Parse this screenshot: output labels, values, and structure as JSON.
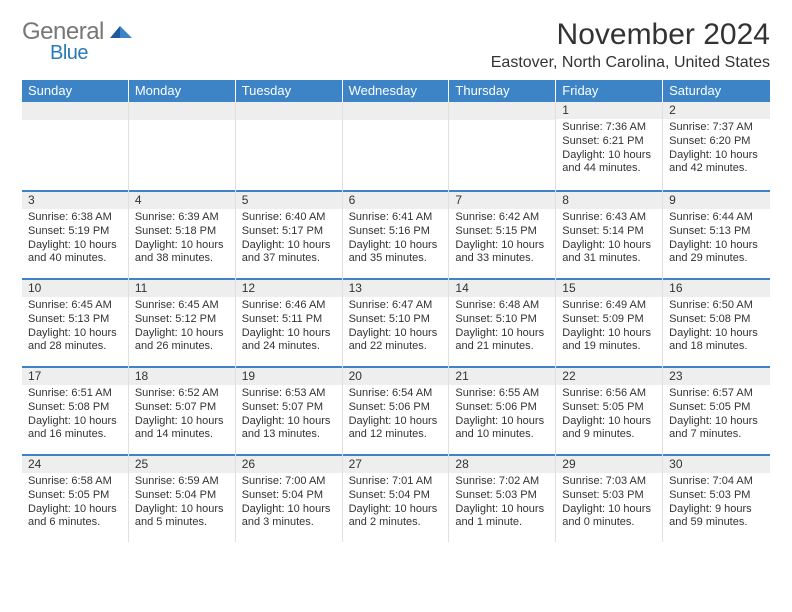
{
  "logo": {
    "word1": "General",
    "word2": "Blue"
  },
  "title": "November 2024",
  "location": "Eastover, North Carolina, United States",
  "colors": {
    "header_bg": "#3c84c6",
    "header_text": "#ffffff",
    "daynum_bg": "#eeeeee",
    "border": "#e0e0e0",
    "text": "#333333",
    "logo_general": "#777777",
    "logo_blue": "#2a7ab9"
  },
  "day_names": [
    "Sunday",
    "Monday",
    "Tuesday",
    "Wednesday",
    "Thursday",
    "Friday",
    "Saturday"
  ],
  "weeks": [
    [
      null,
      null,
      null,
      null,
      null,
      {
        "num": "1",
        "sunrise": "Sunrise: 7:36 AM",
        "sunset": "Sunset: 6:21 PM",
        "day1": "Daylight: 10 hours",
        "day2": "and 44 minutes."
      },
      {
        "num": "2",
        "sunrise": "Sunrise: 7:37 AM",
        "sunset": "Sunset: 6:20 PM",
        "day1": "Daylight: 10 hours",
        "day2": "and 42 minutes."
      }
    ],
    [
      {
        "num": "3",
        "sunrise": "Sunrise: 6:38 AM",
        "sunset": "Sunset: 5:19 PM",
        "day1": "Daylight: 10 hours",
        "day2": "and 40 minutes."
      },
      {
        "num": "4",
        "sunrise": "Sunrise: 6:39 AM",
        "sunset": "Sunset: 5:18 PM",
        "day1": "Daylight: 10 hours",
        "day2": "and 38 minutes."
      },
      {
        "num": "5",
        "sunrise": "Sunrise: 6:40 AM",
        "sunset": "Sunset: 5:17 PM",
        "day1": "Daylight: 10 hours",
        "day2": "and 37 minutes."
      },
      {
        "num": "6",
        "sunrise": "Sunrise: 6:41 AM",
        "sunset": "Sunset: 5:16 PM",
        "day1": "Daylight: 10 hours",
        "day2": "and 35 minutes."
      },
      {
        "num": "7",
        "sunrise": "Sunrise: 6:42 AM",
        "sunset": "Sunset: 5:15 PM",
        "day1": "Daylight: 10 hours",
        "day2": "and 33 minutes."
      },
      {
        "num": "8",
        "sunrise": "Sunrise: 6:43 AM",
        "sunset": "Sunset: 5:14 PM",
        "day1": "Daylight: 10 hours",
        "day2": "and 31 minutes."
      },
      {
        "num": "9",
        "sunrise": "Sunrise: 6:44 AM",
        "sunset": "Sunset: 5:13 PM",
        "day1": "Daylight: 10 hours",
        "day2": "and 29 minutes."
      }
    ],
    [
      {
        "num": "10",
        "sunrise": "Sunrise: 6:45 AM",
        "sunset": "Sunset: 5:13 PM",
        "day1": "Daylight: 10 hours",
        "day2": "and 28 minutes."
      },
      {
        "num": "11",
        "sunrise": "Sunrise: 6:45 AM",
        "sunset": "Sunset: 5:12 PM",
        "day1": "Daylight: 10 hours",
        "day2": "and 26 minutes."
      },
      {
        "num": "12",
        "sunrise": "Sunrise: 6:46 AM",
        "sunset": "Sunset: 5:11 PM",
        "day1": "Daylight: 10 hours",
        "day2": "and 24 minutes."
      },
      {
        "num": "13",
        "sunrise": "Sunrise: 6:47 AM",
        "sunset": "Sunset: 5:10 PM",
        "day1": "Daylight: 10 hours",
        "day2": "and 22 minutes."
      },
      {
        "num": "14",
        "sunrise": "Sunrise: 6:48 AM",
        "sunset": "Sunset: 5:10 PM",
        "day1": "Daylight: 10 hours",
        "day2": "and 21 minutes."
      },
      {
        "num": "15",
        "sunrise": "Sunrise: 6:49 AM",
        "sunset": "Sunset: 5:09 PM",
        "day1": "Daylight: 10 hours",
        "day2": "and 19 minutes."
      },
      {
        "num": "16",
        "sunrise": "Sunrise: 6:50 AM",
        "sunset": "Sunset: 5:08 PM",
        "day1": "Daylight: 10 hours",
        "day2": "and 18 minutes."
      }
    ],
    [
      {
        "num": "17",
        "sunrise": "Sunrise: 6:51 AM",
        "sunset": "Sunset: 5:08 PM",
        "day1": "Daylight: 10 hours",
        "day2": "and 16 minutes."
      },
      {
        "num": "18",
        "sunrise": "Sunrise: 6:52 AM",
        "sunset": "Sunset: 5:07 PM",
        "day1": "Daylight: 10 hours",
        "day2": "and 14 minutes."
      },
      {
        "num": "19",
        "sunrise": "Sunrise: 6:53 AM",
        "sunset": "Sunset: 5:07 PM",
        "day1": "Daylight: 10 hours",
        "day2": "and 13 minutes."
      },
      {
        "num": "20",
        "sunrise": "Sunrise: 6:54 AM",
        "sunset": "Sunset: 5:06 PM",
        "day1": "Daylight: 10 hours",
        "day2": "and 12 minutes."
      },
      {
        "num": "21",
        "sunrise": "Sunrise: 6:55 AM",
        "sunset": "Sunset: 5:06 PM",
        "day1": "Daylight: 10 hours",
        "day2": "and 10 minutes."
      },
      {
        "num": "22",
        "sunrise": "Sunrise: 6:56 AM",
        "sunset": "Sunset: 5:05 PM",
        "day1": "Daylight: 10 hours",
        "day2": "and 9 minutes."
      },
      {
        "num": "23",
        "sunrise": "Sunrise: 6:57 AM",
        "sunset": "Sunset: 5:05 PM",
        "day1": "Daylight: 10 hours",
        "day2": "and 7 minutes."
      }
    ],
    [
      {
        "num": "24",
        "sunrise": "Sunrise: 6:58 AM",
        "sunset": "Sunset: 5:05 PM",
        "day1": "Daylight: 10 hours",
        "day2": "and 6 minutes."
      },
      {
        "num": "25",
        "sunrise": "Sunrise: 6:59 AM",
        "sunset": "Sunset: 5:04 PM",
        "day1": "Daylight: 10 hours",
        "day2": "and 5 minutes."
      },
      {
        "num": "26",
        "sunrise": "Sunrise: 7:00 AM",
        "sunset": "Sunset: 5:04 PM",
        "day1": "Daylight: 10 hours",
        "day2": "and 3 minutes."
      },
      {
        "num": "27",
        "sunrise": "Sunrise: 7:01 AM",
        "sunset": "Sunset: 5:04 PM",
        "day1": "Daylight: 10 hours",
        "day2": "and 2 minutes."
      },
      {
        "num": "28",
        "sunrise": "Sunrise: 7:02 AM",
        "sunset": "Sunset: 5:03 PM",
        "day1": "Daylight: 10 hours",
        "day2": "and 1 minute."
      },
      {
        "num": "29",
        "sunrise": "Sunrise: 7:03 AM",
        "sunset": "Sunset: 5:03 PM",
        "day1": "Daylight: 10 hours",
        "day2": "and 0 minutes."
      },
      {
        "num": "30",
        "sunrise": "Sunrise: 7:04 AM",
        "sunset": "Sunset: 5:03 PM",
        "day1": "Daylight: 9 hours",
        "day2": "and 59 minutes."
      }
    ]
  ]
}
